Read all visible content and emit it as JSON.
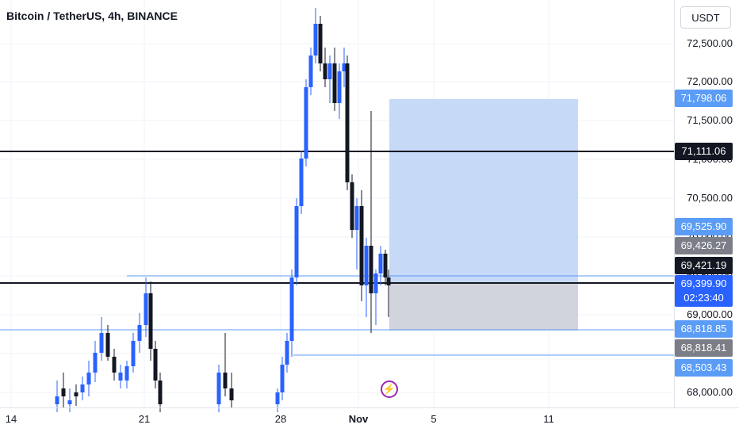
{
  "header": {
    "title": "Bitcoin / TetherUS, 4h, BINANCE",
    "currency": "USDT"
  },
  "y_axis_ticks": [
    "72,500.00",
    "72,000.00",
    "71,500.00",
    "71,000.00",
    "70,500.00",
    "70,000.00",
    "69,500.00",
    "69,000.00",
    "68,000.00"
  ],
  "x_axis_ticks": [
    "14",
    "21",
    "28",
    "Nov",
    "5",
    "11"
  ],
  "price_labels": {
    "tp_top": "71,798.06",
    "hline": "71,111.06",
    "entry_top": "69,525.90",
    "gray_mid": "69,426.27",
    "hline2": "69,421.19",
    "last_price": "69,399.90",
    "countdown": "02:23:40",
    "stop_area": "68,818.85",
    "gray_low": "68,818.41",
    "low_line": "68,503.43"
  },
  "colors": {
    "up": "#2962ff",
    "down": "#131722",
    "target_zone": "#c6d9f7",
    "stop_zone": "#d1d4dc",
    "label_blue": "#5b9cf6",
    "label_gray": "#7b7e87",
    "label_black": "#131722",
    "live_label": "#2962ff"
  },
  "icons": {
    "alert": "lightning-icon"
  }
}
